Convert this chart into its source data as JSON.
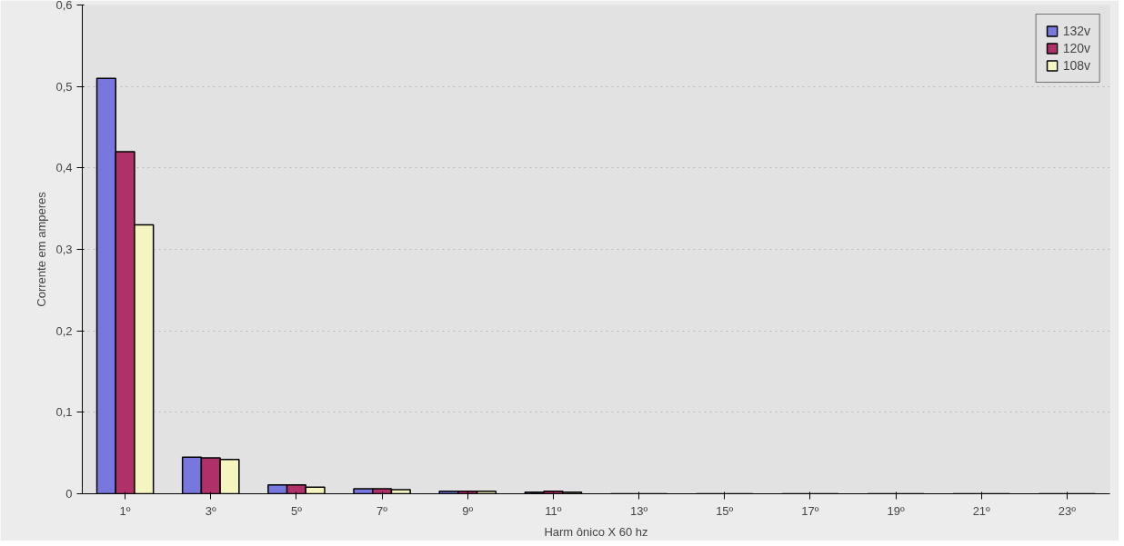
{
  "chart_data": {
    "type": "bar",
    "xlabel": "Harm ônico X 60 hz",
    "ylabel": "Corrente em amperes",
    "categories": [
      "1º",
      "3º",
      "5º",
      "7º",
      "9º",
      "11º",
      "13º",
      "15º",
      "17º",
      "19º",
      "21º",
      "23º"
    ],
    "series": [
      {
        "name": "132v",
        "color": "#7777dd",
        "values": [
          0.51,
          0.045,
          0.011,
          0.006,
          0.003,
          0.002,
          0,
          0,
          0,
          0,
          0,
          0
        ]
      },
      {
        "name": "120v",
        "color": "#b0306a",
        "values": [
          0.42,
          0.044,
          0.011,
          0.006,
          0.003,
          0.003,
          0,
          0,
          0,
          0,
          0,
          0
        ]
      },
      {
        "name": "108v",
        "color": "#f5f5c0",
        "values": [
          0.33,
          0.042,
          0.008,
          0.005,
          0.003,
          0.002,
          0,
          0,
          0,
          0,
          0,
          0
        ]
      }
    ],
    "ylim": [
      0,
      0.6
    ],
    "yticks": [
      {
        "value": 0,
        "label": "0"
      },
      {
        "value": 0.1,
        "label": "0,1"
      },
      {
        "value": 0.2,
        "label": "0,2"
      },
      {
        "value": 0.3,
        "label": "0,3"
      },
      {
        "value": 0.4,
        "label": "0,4"
      },
      {
        "value": 0.5,
        "label": "0,5"
      },
      {
        "value": 0.6,
        "label": "0,6"
      }
    ],
    "grid": "y",
    "legend": "top right"
  }
}
